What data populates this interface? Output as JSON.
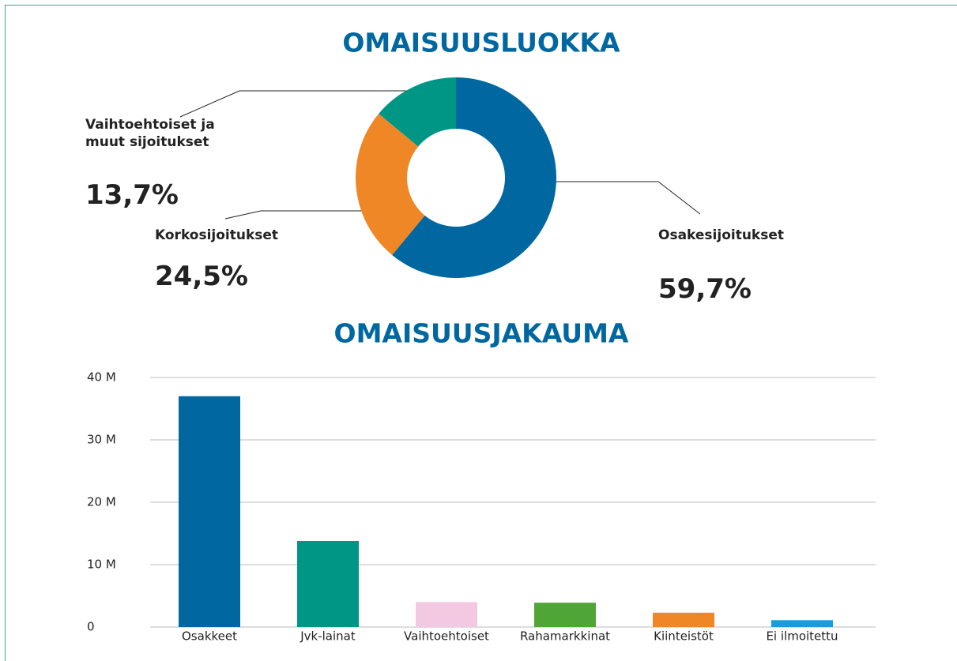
{
  "chart_data": [
    {
      "type": "donut",
      "title": "OMAISUUSLUOKKA",
      "categories": [
        "Osakesijoitukset",
        "Korkosijoitukset",
        "Vaihtoehtoiset ja muut sijoitukset"
      ],
      "values": [
        59.7,
        24.5,
        13.7
      ],
      "value_labels": [
        "59,7%",
        "24,5%",
        "13,7%"
      ],
      "colors": [
        "#0067a0",
        "#f08726",
        "#009685"
      ]
    },
    {
      "type": "bar",
      "title": "OMAISUUSJAKAUMA",
      "categories": [
        "Osakkeet",
        "Jvk-lainat",
        "Vaihtoehtoiset",
        "Rahamarkkinat",
        "Kiinteistöt",
        "Ei ilmoitettu"
      ],
      "values": [
        37000000,
        13800000,
        4000000,
        3900000,
        2300000,
        1100000
      ],
      "colors": [
        "#0067a0",
        "#009685",
        "#f2c9e1",
        "#4fa535",
        "#f08726",
        "#1b9bd7"
      ],
      "ylim": [
        0,
        40000000
      ],
      "yticks": [
        {
          "value": 0,
          "label": "0"
        },
        {
          "value": 10000000,
          "label": "10 M"
        },
        {
          "value": 20000000,
          "label": "20 M"
        },
        {
          "value": 30000000,
          "label": "30 M"
        },
        {
          "value": 40000000,
          "label": "40 M"
        }
      ],
      "grid": true
    }
  ]
}
